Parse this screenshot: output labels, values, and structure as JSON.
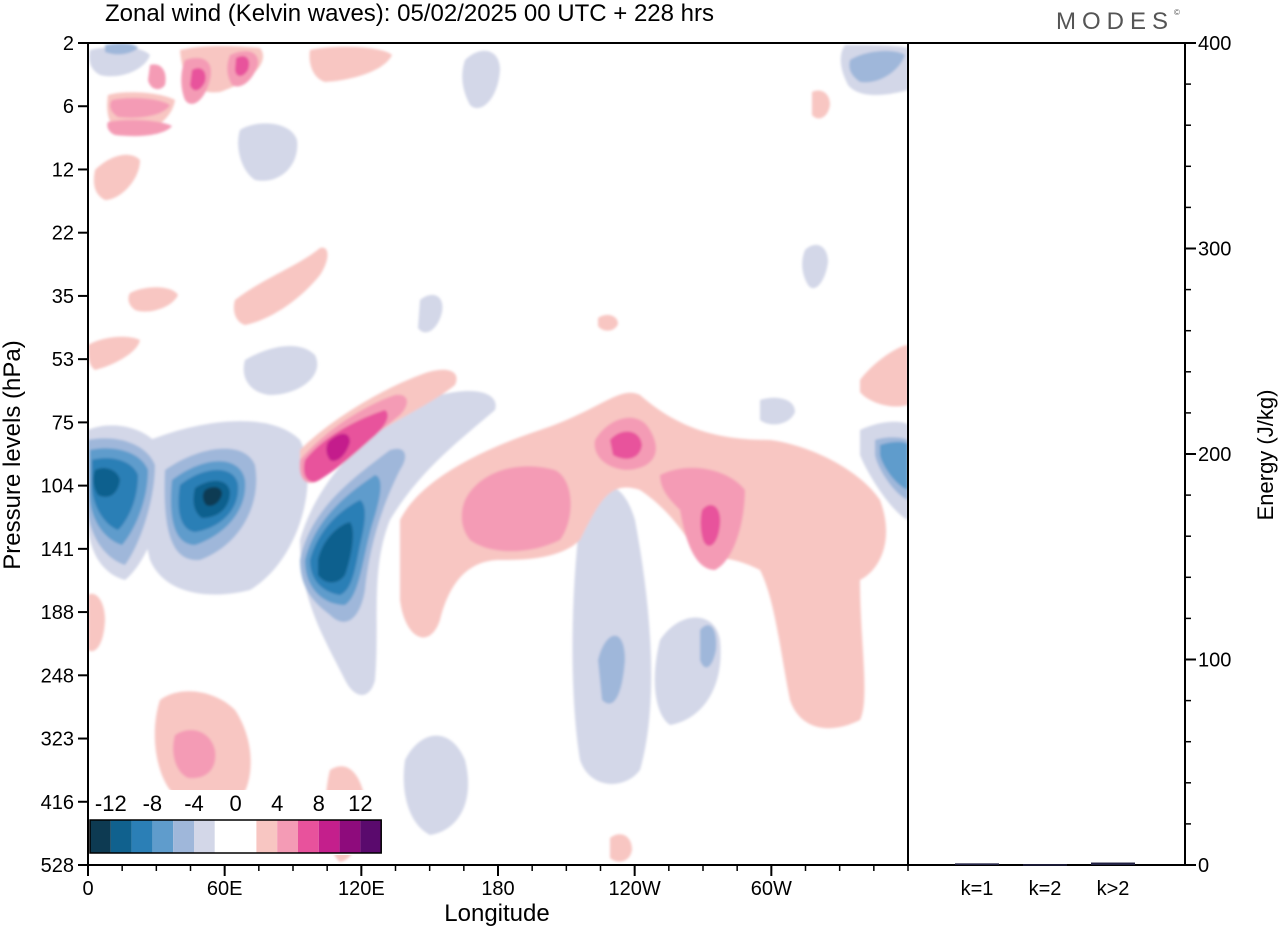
{
  "title": "Zonal wind (Kelvin waves):  05/02/2025  00 UTC  + 228 hrs",
  "brand": "MODES",
  "brand_mark": "©",
  "chart_data": [
    {
      "type": "heatmap",
      "xlabel": "Longitude",
      "ylabel": "Pressure levels (hPa)",
      "x_ticks": [
        "0",
        "60E",
        "120E",
        "180",
        "120W",
        "60W"
      ],
      "x_tick_lon": [
        0,
        60,
        120,
        180,
        240,
        300
      ],
      "xlim": [
        0,
        360
      ],
      "y_ticks": [
        "2",
        "6",
        "12",
        "22",
        "35",
        "53",
        "75",
        "104",
        "141",
        "188",
        "248",
        "323",
        "416",
        "528"
      ],
      "colorbar": {
        "tick_labels": [
          "-12",
          "-8",
          "-4",
          "0",
          "4",
          "8",
          "12"
        ],
        "colors": [
          "#0d3a52",
          "#10618e",
          "#2b7fb6",
          "#5f9ccc",
          "#9fb7da",
          "#d3d7e8",
          "#ffffff",
          "#ffffff",
          "#f8c6c2",
          "#f49bb5",
          "#e8529c",
          "#c41f8c",
          "#8e0b7c",
          "#5a0a6d"
        ]
      },
      "features": [
        {
          "lon": 12,
          "level": "104",
          "value": -10
        },
        {
          "lon": 52,
          "level": "104",
          "value": -12
        },
        {
          "lon": 108,
          "level": "141",
          "value": -12
        },
        {
          "lon": 108,
          "level": "88",
          "value": 12
        },
        {
          "lon": 230,
          "level": "88",
          "value": 8
        },
        {
          "lon": 275,
          "level": "120",
          "value": 8
        },
        {
          "lon": 185,
          "level": "115",
          "value": 6
        },
        {
          "lon": 52,
          "level": "323",
          "value": 6
        },
        {
          "lon": 68,
          "level": "4",
          "value": 8
        },
        {
          "lon": 250,
          "level": "220",
          "value": -4
        }
      ]
    },
    {
      "type": "bar",
      "categories": [
        "k=1",
        "k=2",
        "k>2"
      ],
      "values": [
        0.8,
        0.4,
        1.2
      ],
      "ylabel": "Energy (J/kg)",
      "ylim": [
        0,
        400
      ],
      "y_ticks": [
        "0",
        "100",
        "200",
        "300",
        "400"
      ],
      "bar_color": "#222244"
    }
  ]
}
